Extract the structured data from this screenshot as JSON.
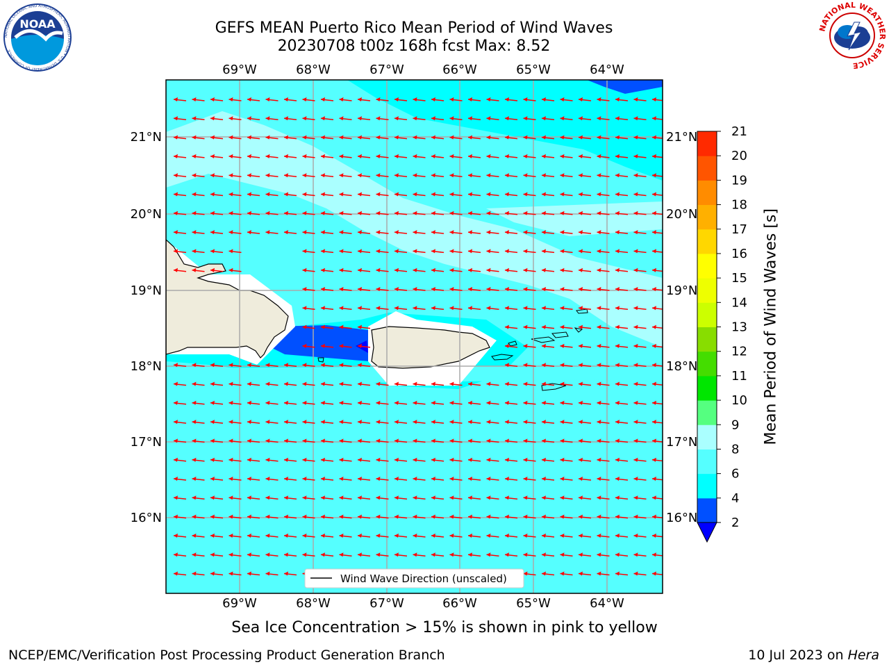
{
  "header": {
    "title_line1": "GEFS MEAN Puerto Rico Mean Period of Wind Waves",
    "title_line2": "20230708 t00z 168h fcst   Max: 8.52"
  },
  "logos": {
    "left": "NOAA",
    "left_ring": "NATIONAL OCEANIC AND ATMOSPHERIC ADMINISTRATION • U.S. DEPARTMENT OF COMMERCE",
    "right_ring": "NATIONAL WEATHER SERVICE"
  },
  "map": {
    "lon_labels": [
      "69°W",
      "68°W",
      "67°W",
      "66°W",
      "65°W",
      "64°W"
    ],
    "lat_labels": [
      "21°N",
      "20°N",
      "19°N",
      "18°N",
      "17°N",
      "16°N"
    ],
    "legend": "Wind Wave Direction (unscaled)",
    "arrow_color": "#ff0000",
    "land_color": "#efecdc"
  },
  "colorbar": {
    "label": "Mean Period of Wind Waves [s]",
    "ticks": [
      "2",
      "4",
      "6",
      "8",
      "9",
      "10",
      "11",
      "12",
      "13",
      "14",
      "15",
      "16",
      "17",
      "18",
      "19",
      "20",
      "21"
    ],
    "colors": [
      "#0050ff",
      "#00ffff",
      "#55ffff",
      "#aaffff",
      "#55ff80",
      "#00e600",
      "#44dd00",
      "#88dd00",
      "#ccff00",
      "#eeff00",
      "#ffff00",
      "#ffd700",
      "#ffb000",
      "#ff8c00",
      "#ff5500",
      "#ff2a00",
      "#ff0000"
    ],
    "extend_color": "#0000ff"
  },
  "caption": "Sea Ice Concentration > 15% is shown in pink to yellow",
  "footer": {
    "left": "NCEP/EMC/Verification Post Processing Product Generation Branch",
    "right_prefix": "10 Jul 2023 on ",
    "right_host": "Hera"
  }
}
